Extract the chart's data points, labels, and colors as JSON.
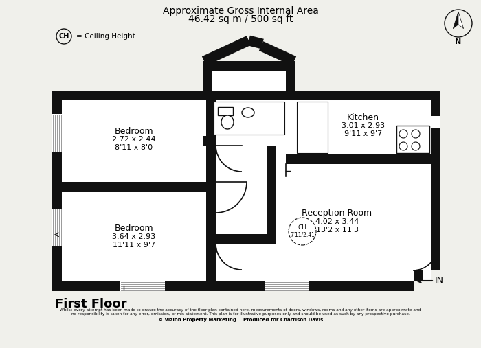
{
  "title_line1": "Approximate Gross Internal Area",
  "title_line2": "46.42 sq m / 500 sq ft",
  "floor_label": "First Floor",
  "disclaimer_line1": "Whilst every attempt has been made to ensure the accuracy of the floor plan contained here, measurements of doors, windows, rooms and any other items are approximate and",
  "disclaimer_line2": "no responsibility is taken for any error, omission, or mis-statement. This plan is for illustrative purposes only and should be used as such by any prospective purchase.",
  "copyright": "© Vizion Property Marketing    Produced for Charrison Davis",
  "ch_label": "CH",
  "ceiling_height_label": "= Ceiling Height",
  "bedroom1_label": "Bedroom",
  "bedroom1_dim1": "2.72 x 2.44",
  "bedroom1_dim2": "8'11 x 8'0",
  "bedroom2_label": "Bedroom",
  "bedroom2_dim1": "3.64 x 2.93",
  "bedroom2_dim2": "11'11 x 9'7",
  "kitchen_label": "Kitchen",
  "kitchen_dim1": "3.01 x 2.93",
  "kitchen_dim2": "9'11 x 9'7",
  "reception_label": "Reception Room",
  "reception_dim1": "4.02 x 3.44",
  "reception_dim2": "13'2 x 11'3",
  "ch_circle_label": "CH",
  "ch_value_label": "7'11/2.41",
  "in_label": "IN",
  "bg_color": "#f0f0eb",
  "wall_color": "#111111",
  "floor_color": "#ffffff",
  "gray_color": "#aaaaaa"
}
